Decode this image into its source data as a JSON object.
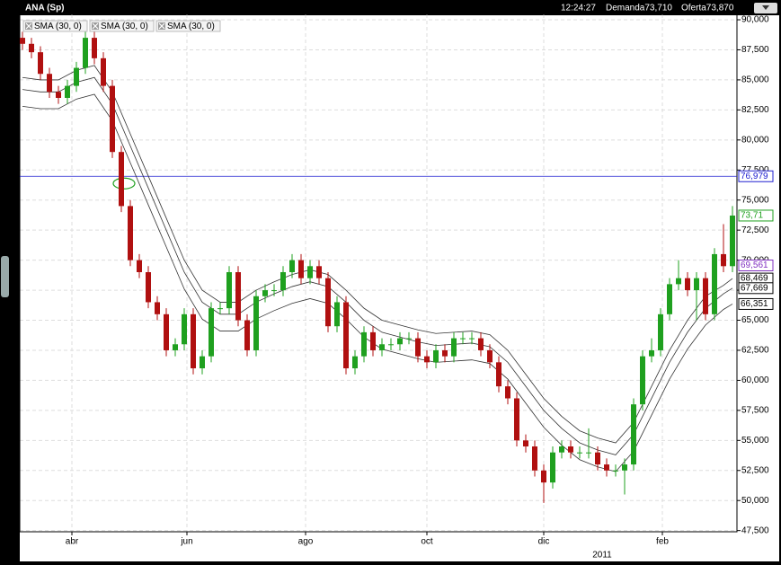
{
  "header": {
    "title": "ANA (Sp)",
    "time": "12:24:27",
    "bid": "Demanda73,710",
    "ask": "Oferta73,870"
  },
  "chart_data": {
    "type": "candlestick",
    "legend": [
      "SMA (30, 0)",
      "SMA (30, 0)",
      "SMA (30, 0)"
    ],
    "up_color": "#1fa01f",
    "down_color": "#b01010",
    "ylim": [
      47400,
      90450
    ],
    "xlim": [
      -0.3,
      79.5
    ],
    "yticks": [
      {
        "value": 90000,
        "label": "90,000"
      },
      {
        "value": 87500,
        "label": "87,500"
      },
      {
        "value": 85000,
        "label": "85,000"
      },
      {
        "value": 82500,
        "label": "82,500"
      },
      {
        "value": 80000,
        "label": "80,000"
      },
      {
        "value": 77500,
        "label": "77,500"
      },
      {
        "value": 75000,
        "label": "75,000"
      },
      {
        "value": 72500,
        "label": "72,500"
      },
      {
        "value": 70000,
        "label": "70,000"
      },
      {
        "value": 67500,
        "label": "67,500"
      },
      {
        "value": 65000,
        "label": "65,000"
      },
      {
        "value": 62500,
        "label": "62,500"
      },
      {
        "value": 60000,
        "label": "60,000"
      },
      {
        "value": 57500,
        "label": "57,500"
      },
      {
        "value": 55000,
        "label": "55,000"
      },
      {
        "value": 52500,
        "label": "52,500"
      },
      {
        "value": 50000,
        "label": "50,000"
      },
      {
        "value": 47500,
        "label": "47,500"
      }
    ],
    "xticks": [
      {
        "value": 5.5,
        "label": "abr"
      },
      {
        "value": 18.3,
        "label": "jun"
      },
      {
        "value": 31.5,
        "label": "ago"
      },
      {
        "value": 45,
        "label": "oct"
      },
      {
        "value": 58,
        "label": "dic"
      },
      {
        "value": 71.2,
        "label": "feb"
      }
    ],
    "year_label": {
      "value": 64.5,
      "label": "2011"
    },
    "grid": true,
    "open": [
      88500,
      88000,
      87300,
      85500,
      84000,
      83500,
      84500,
      86000,
      88500,
      86800,
      84500,
      79000,
      74500,
      70000,
      69000,
      66500,
      65500,
      62500,
      63000,
      65500,
      61000,
      62000,
      66000,
      66000,
      69000,
      65000,
      62500,
      67000,
      67500,
      67500,
      69000,
      70000,
      68500,
      69500,
      68500,
      64500,
      66500,
      61000,
      62000,
      64000,
      62500,
      63000,
      63000,
      63500,
      63500,
      62000,
      61500,
      62500,
      62000,
      63500,
      63500,
      63500,
      62500,
      61500,
      59500,
      58500,
      55000,
      54500,
      52500,
      51500,
      54000,
      54500,
      54000,
      54000,
      54000,
      53000,
      52500,
      52500,
      53000,
      58000,
      62000,
      62500,
      65500,
      68000,
      68500,
      67500,
      68500,
      65500,
      70500,
      69500
    ],
    "high": [
      89000,
      88500,
      87800,
      86000,
      84500,
      85000,
      86500,
      89000,
      89000,
      87300,
      85000,
      79500,
      75000,
      70500,
      69500,
      67000,
      66000,
      63500,
      66000,
      66000,
      62500,
      66500,
      66500,
      69500,
      69500,
      65500,
      67500,
      68000,
      68000,
      69500,
      70500,
      70500,
      70000,
      70000,
      69000,
      67000,
      67000,
      62500,
      64500,
      64500,
      63500,
      63500,
      64000,
      64000,
      64000,
      62500,
      63000,
      63000,
      64000,
      64000,
      64000,
      64000,
      63000,
      62000,
      60000,
      59000,
      55500,
      55000,
      53000,
      54500,
      55000,
      55000,
      54500,
      56000,
      54500,
      53500,
      53000,
      53500,
      58500,
      62500,
      63500,
      66000,
      68500,
      70000,
      69000,
      69000,
      69000,
      71000,
      73000,
      74500
    ],
    "low": [
      87500,
      86800,
      85000,
      83500,
      83000,
      83000,
      84000,
      85500,
      86300,
      84000,
      78500,
      74000,
      69500,
      68500,
      66000,
      65000,
      62000,
      62000,
      62500,
      60500,
      60500,
      61500,
      65500,
      65500,
      64500,
      62000,
      62000,
      66500,
      67000,
      67000,
      68500,
      68000,
      68000,
      68000,
      64000,
      64000,
      60500,
      60500,
      61500,
      62000,
      62000,
      62500,
      62500,
      63000,
      61500,
      61000,
      61000,
      61500,
      61500,
      63000,
      63000,
      62000,
      61000,
      59000,
      58000,
      54500,
      54000,
      52000,
      49800,
      51000,
      53500,
      53500,
      53500,
      53500,
      52500,
      52000,
      52000,
      50500,
      52500,
      57500,
      61500,
      62000,
      65000,
      67500,
      67000,
      65000,
      65000,
      65000,
      69000,
      69000
    ],
    "close": [
      88000,
      87300,
      85500,
      84000,
      83500,
      84500,
      86000,
      88500,
      86800,
      84500,
      79000,
      74500,
      70000,
      69000,
      66500,
      65500,
      62500,
      63000,
      65500,
      61000,
      62000,
      66000,
      66000,
      69000,
      65000,
      62500,
      67000,
      67500,
      67500,
      69000,
      70000,
      68500,
      69500,
      68500,
      64500,
      66500,
      61000,
      62000,
      64000,
      62500,
      63000,
      63000,
      63500,
      63500,
      62000,
      61500,
      62500,
      62000,
      63500,
      63500,
      63500,
      62500,
      61500,
      59500,
      58500,
      55000,
      54500,
      52500,
      51500,
      54000,
      54500,
      54000,
      54000,
      54000,
      53000,
      52500,
      52500,
      53000,
      58000,
      62000,
      62500,
      65500,
      68000,
      68500,
      67500,
      68500,
      65500,
      70500,
      69500,
      73710
    ],
    "line_x": [
      0,
      2,
      4,
      6,
      8,
      10,
      12,
      14,
      16,
      18,
      20,
      22,
      24,
      26,
      28,
      30,
      32,
      34,
      36,
      38,
      40,
      42,
      44,
      46,
      48,
      50,
      52,
      54,
      56,
      58,
      60,
      62,
      64,
      66,
      68,
      70,
      72,
      74,
      76,
      78,
      79
    ],
    "series": [
      {
        "name": "SMA (30, 0)",
        "color": "#333333",
        "values": [
          85200,
          85000,
          85000,
          85800,
          86200,
          84000,
          80500,
          77000,
          73500,
          70000,
          67500,
          66500,
          66500,
          67500,
          68200,
          68800,
          69200,
          68800,
          67500,
          66000,
          65000,
          64600,
          64200,
          63900,
          64000,
          64100,
          63800,
          62500,
          60500,
          58500,
          57000,
          55800,
          55200,
          54800,
          56500,
          59500,
          62500,
          65000,
          67000,
          67900,
          68469
        ]
      },
      {
        "name": "SMA (30, 0)",
        "color": "#333333",
        "values": [
          84200,
          84000,
          84000,
          84800,
          85200,
          83000,
          79500,
          76000,
          72500,
          69000,
          66500,
          65500,
          65500,
          66500,
          67200,
          67800,
          68200,
          67800,
          66500,
          65000,
          64000,
          63600,
          63200,
          62900,
          63000,
          63100,
          62800,
          61500,
          59500,
          57500,
          56000,
          54800,
          54200,
          53800,
          55500,
          58500,
          61500,
          64000,
          66000,
          67200,
          67669
        ]
      },
      {
        "name": "SMA (30, 0)",
        "color": "#333333",
        "values": [
          82800,
          82600,
          82600,
          83400,
          83800,
          81600,
          78100,
          74600,
          71100,
          67600,
          65100,
          64100,
          64100,
          65100,
          65800,
          66400,
          66800,
          66400,
          65100,
          63600,
          62600,
          62200,
          61800,
          61500,
          61600,
          61700,
          61400,
          60100,
          58100,
          56100,
          54600,
          53400,
          52800,
          52400,
          54100,
          57100,
          60100,
          62600,
          64600,
          65900,
          66351
        ]
      }
    ],
    "hline": {
      "value": 76979,
      "color": "#2020d0"
    },
    "price_labels": [
      {
        "value": 76979,
        "label": "76,979",
        "color": "#2020d0"
      },
      {
        "value": 73710,
        "label": "73,71",
        "color": "#1fa01f"
      },
      {
        "value": 69561,
        "label": "69,561",
        "color": "#8030c0"
      },
      {
        "value": 68469,
        "label": "68,469",
        "color": "#000000"
      },
      {
        "value": 67669,
        "label": "67,669",
        "color": "#000000"
      },
      {
        "value": 66351,
        "label": "66,351",
        "color": "#000000"
      }
    ]
  }
}
